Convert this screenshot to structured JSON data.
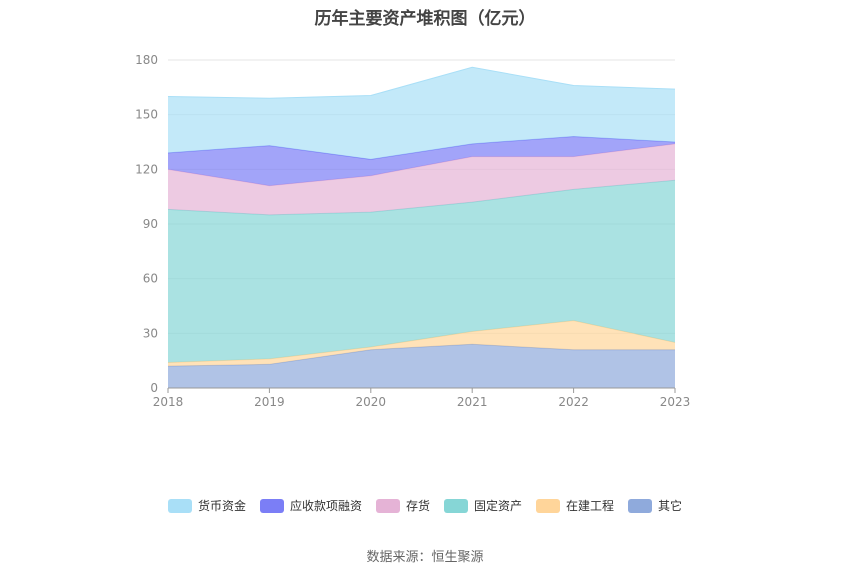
{
  "chart_data": {
    "type": "area",
    "stacked": true,
    "title": "历年主要资产堆积图（亿元）",
    "categories": [
      "2018",
      "2019",
      "2020",
      "2021",
      "2022",
      "2023"
    ],
    "ylim": [
      0,
      180
    ],
    "yticks": [
      0,
      30,
      60,
      90,
      120,
      150,
      180
    ],
    "grid": true,
    "legend_position": "bottom",
    "series": [
      {
        "name": "其它",
        "color": "#8faadc",
        "values": [
          12,
          13,
          21,
          24,
          21,
          21
        ]
      },
      {
        "name": "在建工程",
        "color": "#ffd59a",
        "values": [
          2,
          3,
          1.5,
          7,
          16,
          4
        ]
      },
      {
        "name": "固定资产",
        "color": "#86d6d6",
        "values": [
          84,
          79,
          74,
          71,
          72,
          89
        ]
      },
      {
        "name": "存货",
        "color": "#e5b3d6",
        "values": [
          22,
          16,
          20,
          25,
          18,
          20
        ]
      },
      {
        "name": "应收款项融资",
        "color": "#7b7ef6",
        "values": [
          9,
          22,
          9,
          7,
          11,
          1
        ]
      },
      {
        "name": "货币资金",
        "color": "#a9dff7",
        "values": [
          31,
          26,
          35,
          42,
          28,
          29
        ]
      }
    ],
    "legend_order": [
      "货币资金",
      "应收款项融资",
      "存货",
      "固定资产",
      "在建工程",
      "其它"
    ]
  },
  "source": "数据来源：恒生聚源"
}
